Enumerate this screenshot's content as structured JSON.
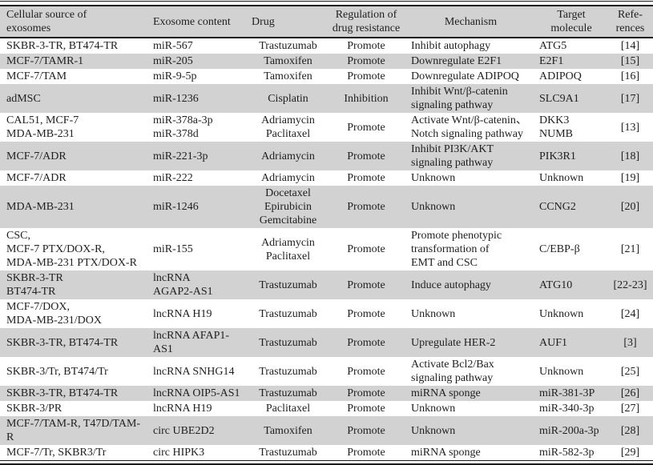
{
  "colors": {
    "header_bg": "#d2d2d2",
    "row_stripe": "#d2d2d2",
    "rule": "#1b1b1b",
    "text": "#1f1f1f",
    "background": "#ffffff"
  },
  "table": {
    "columns": [
      {
        "key": "source",
        "label": "Cellular source of\nexosomes",
        "header_align": "left",
        "align": "left"
      },
      {
        "key": "content",
        "label": "Exosome content",
        "header_align": "left",
        "align": "left"
      },
      {
        "key": "drug",
        "label": "Drug",
        "header_align": "left",
        "align": "center"
      },
      {
        "key": "regulation",
        "label": "Regulation of\ndrug resistance",
        "header_align": "center",
        "align": "center"
      },
      {
        "key": "mechanism",
        "label": "Mechanism",
        "header_align": "center",
        "align": "left"
      },
      {
        "key": "target",
        "label": "Target\nmolecule",
        "header_align": "center",
        "align": "left"
      },
      {
        "key": "reference",
        "label": "Refe-\nrences",
        "header_align": "center",
        "align": "center"
      }
    ],
    "rows": [
      {
        "source": "SKBR-3-TR, BT474-TR",
        "content": "miR-567",
        "drug": "Trastuzumab",
        "regulation": "Promote",
        "mechanism": "Inhibit autophagy",
        "target": "ATG5",
        "reference": "[14]"
      },
      {
        "source": "MCF-7/TAMR-1",
        "content": "miR-205",
        "drug": "Tamoxifen",
        "regulation": "Promote",
        "mechanism": "Downregulate E2F1",
        "target": "E2F1",
        "reference": "[15]"
      },
      {
        "source": "MCF-7/TAM",
        "content": "miR-9-5p",
        "drug": "Tamoxifen",
        "regulation": "Promote",
        "mechanism": "Downregulate ADIPOQ",
        "target": "ADIPOQ",
        "reference": "[16]"
      },
      {
        "source": "adMSC",
        "content": "miR-1236",
        "drug": "Cisplatin",
        "regulation": "Inhibition",
        "mechanism": "Inhibit Wnt/β-catenin\nsignaling pathway",
        "target": "SLC9A1",
        "reference": "[17]"
      },
      {
        "source": "CAL51, MCF-7\nMDA-MB-231",
        "content": "miR-378a-3p\nmiR-378d",
        "drug": "Adriamycin\nPaclitaxel",
        "regulation": "Promote",
        "mechanism": "Activate Wnt/β-catenin、\nNotch signaling pathway",
        "target": "DKK3\nNUMB",
        "reference": "[13]"
      },
      {
        "source": "MCF-7/ADR",
        "content": "miR-221-3p",
        "drug": "Adriamycin",
        "regulation": "Promote",
        "mechanism": "Inhibit PI3K/AKT\nsignaling pathway",
        "target": "PIK3R1",
        "reference": "[18]"
      },
      {
        "source": "MCF-7/ADR",
        "content": "miR-222",
        "drug": "Adriamycin",
        "regulation": "Promote",
        "mechanism": "Unknown",
        "target": "Unknown",
        "reference": "[19]"
      },
      {
        "source": "MDA-MB-231",
        "content": "miR-1246",
        "drug": "Docetaxel\nEpirubicin\nGemcitabine",
        "regulation": "Promote",
        "mechanism": "Unknown",
        "target": "CCNG2",
        "reference": "[20]"
      },
      {
        "source": "CSC,\nMCF-7 PTX/DOX-R,\nMDA-MB-231 PTX/DOX-R",
        "content": "miR-155",
        "drug": "Adriamycin\nPaclitaxel",
        "regulation": "Promote",
        "mechanism": "Promote phenotypic\ntransformation of\nEMT and CSC",
        "target": "C/EBP-β",
        "reference": "[21]"
      },
      {
        "source": "SKBR-3-TR\nBT474-TR",
        "content": "lncRNA\nAGAP2-AS1",
        "drug": "Trastuzumab",
        "regulation": "Promote",
        "mechanism": "Induce autophagy",
        "target": "ATG10",
        "reference": "[22-23]"
      },
      {
        "source": "MCF-7/DOX,\nMDA-MB-231/DOX",
        "content": "lncRNA H19",
        "drug": "Trastuzumab",
        "regulation": "Promote",
        "mechanism": "Unknown",
        "target": "Unknown",
        "reference": "[24]"
      },
      {
        "source": "SKBR-3-TR, BT474-TR",
        "content": "lncRNA AFAP1-AS1",
        "drug": "Trastuzumab",
        "regulation": "Promote",
        "mechanism": "Upregulate HER-2",
        "target": "AUF1",
        "reference": "[3]"
      },
      {
        "source": "SKBR-3/Tr, BT474/Tr",
        "content": "lncRNA SNHG14",
        "drug": "Trastuzumab",
        "regulation": "Promote",
        "mechanism": "Activate Bcl2/Bax\nsignaling pathway",
        "target": "Unknown",
        "reference": "[25]"
      },
      {
        "source": "SKBR-3-TR, BT474-TR",
        "content": "lncRNA OIP5-AS1",
        "drug": "Trastuzumab",
        "regulation": "Promote",
        "mechanism": "miRNA sponge",
        "target": "miR-381-3P",
        "reference": "[26]"
      },
      {
        "source": "SKBR-3/PR",
        "content": "lncRNA H19",
        "drug": "Paclitaxel",
        "regulation": "Promote",
        "mechanism": "Unknown",
        "target": "miR-340-3p",
        "reference": "[27]"
      },
      {
        "source": "MCF-7/TAM-R, T47D/TAM-R",
        "content": "circ UBE2D2",
        "drug": "Tamoxifen",
        "regulation": "Promote",
        "mechanism": "Unknown",
        "target": "miR-200a-3p",
        "reference": "[28]"
      },
      {
        "source": "MCF-7/Tr, SKBR3/Tr",
        "content": "circ HIPK3",
        "drug": "Trastuzumab",
        "regulation": "Promote",
        "mechanism": "miRNA sponge",
        "target": "miR-582-3p",
        "reference": "[29]"
      }
    ]
  }
}
